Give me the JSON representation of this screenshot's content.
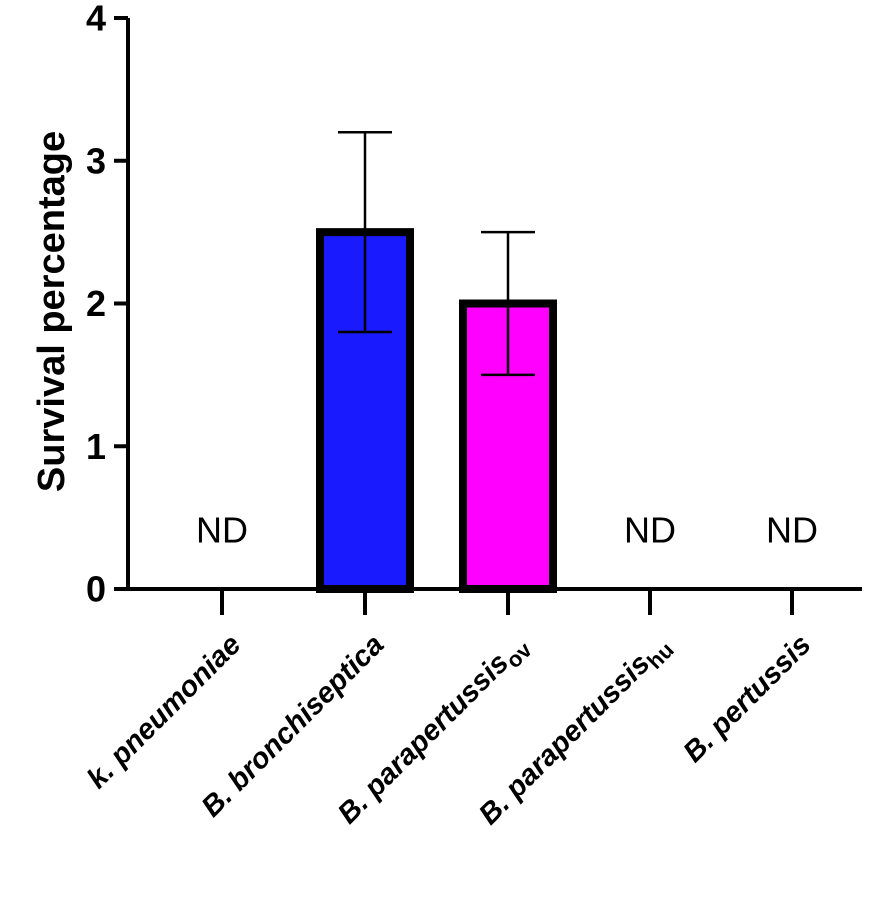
{
  "chart_data": {
    "type": "bar",
    "ylabel": "Survival  percentage",
    "xlabel": "",
    "ylim": [
      0,
      4
    ],
    "yticks": [
      "0",
      "1",
      "2",
      "3",
      "4"
    ],
    "categories": [
      {
        "main": "k. pneumoniae",
        "sub": ""
      },
      {
        "main": "B. bronchiseptica",
        "sub": ""
      },
      {
        "main": "B. parapertussis",
        "sub": "ov"
      },
      {
        "main": "B. parapertussis",
        "sub": "hu"
      },
      {
        "main": "B. pertussis",
        "sub": ""
      }
    ],
    "values": [
      0,
      2.5,
      2.0,
      0,
      0
    ],
    "error_low": [
      null,
      1.8,
      1.5,
      null,
      null
    ],
    "error_high": [
      null,
      3.2,
      2.5,
      null,
      null
    ],
    "bar_colors": [
      "#ffffff",
      "#1a1aff",
      "#ff00ff",
      "#ffffff",
      "#ffffff"
    ],
    "annotations": [
      "ND",
      "",
      "",
      "ND",
      "ND"
    ],
    "grid": false,
    "legend": "none"
  }
}
